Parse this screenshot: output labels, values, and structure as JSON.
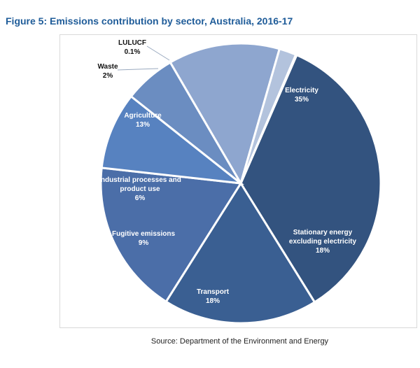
{
  "title": "Figure 5: Emissions contribution by sector, Australia, 2016-17",
  "source": "Source: Department of the Environment and Energy",
  "chart_data": {
    "type": "pie",
    "title": "",
    "slices": [
      {
        "label": "Electricity",
        "value_text": "35%",
        "value": 35,
        "color": "#33537f"
      },
      {
        "label": "Stationary energy excluding electricity",
        "value_text": "18%",
        "value": 18,
        "color": "#3a5f92"
      },
      {
        "label": "Transport",
        "value_text": "18%",
        "value": 18,
        "color": "#4b6ea8"
      },
      {
        "label": "Fugitive emissions",
        "value_text": "9%",
        "value": 9,
        "color": "#5782c0"
      },
      {
        "label": "Industrial processes and product use",
        "value_text": "6%",
        "value": 6,
        "color": "#6b8dc1"
      },
      {
        "label": "Agriculture",
        "value_text": "13%",
        "value": 13,
        "color": "#8ea6cf"
      },
      {
        "label": "Waste",
        "value_text": "2%",
        "value": 2,
        "color": "#b3c3dd"
      },
      {
        "label": "LULUCF",
        "value_text": "0.1%",
        "value": 0.1,
        "color": "#c9d4e6"
      }
    ]
  }
}
